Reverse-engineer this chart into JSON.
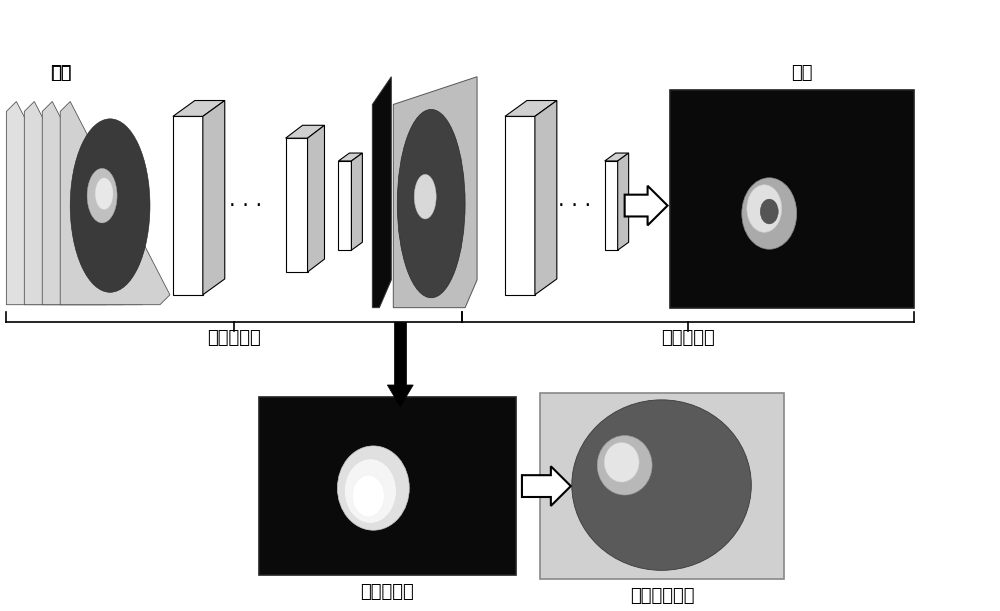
{
  "title_input": "输入",
  "title_output": "输出",
  "label_loc_net": "肿瘤定位网",
  "label_cls_net": "瘤内分类网",
  "label_loc_output": "定位网输出",
  "label_tumor_region": "肿瘤候选区域",
  "dots": "· · ·",
  "font_size_label": 12,
  "font_size_dots": 13,
  "font_size_title": 12
}
